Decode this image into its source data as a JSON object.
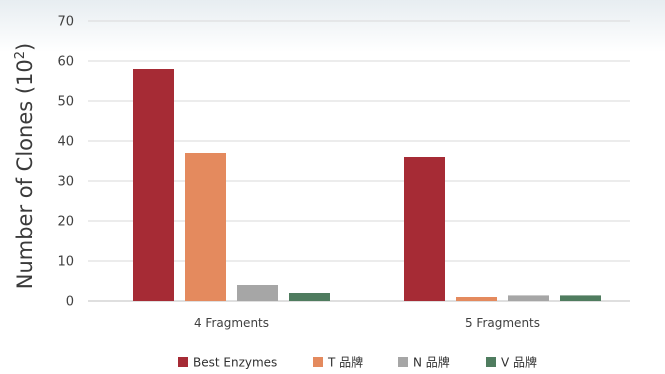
{
  "chart_data": {
    "type": "bar",
    "title": "",
    "xlabel": "",
    "ylabel": "Number of Clones (10",
    "ylabel_superscript": "2",
    "ylabel_close": ")",
    "ylim": [
      0,
      70
    ],
    "yticks": [
      0,
      10,
      20,
      30,
      40,
      50,
      60,
      70
    ],
    "grid": true,
    "legend_position": "bottom",
    "categories": [
      "4 Fragments",
      "5 Fragments"
    ],
    "series": [
      {
        "name": "Best Enzymes",
        "color": "#a62b35",
        "values": [
          58,
          36
        ]
      },
      {
        "name": "T 品牌",
        "color": "#e48a5e",
        "values": [
          37,
          1
        ]
      },
      {
        "name": "N 品牌",
        "color": "#a6a6a6",
        "values": [
          4,
          1.4
        ]
      },
      {
        "name": "V 品牌",
        "color": "#4f7c5f",
        "values": [
          2,
          1.4
        ]
      }
    ]
  }
}
